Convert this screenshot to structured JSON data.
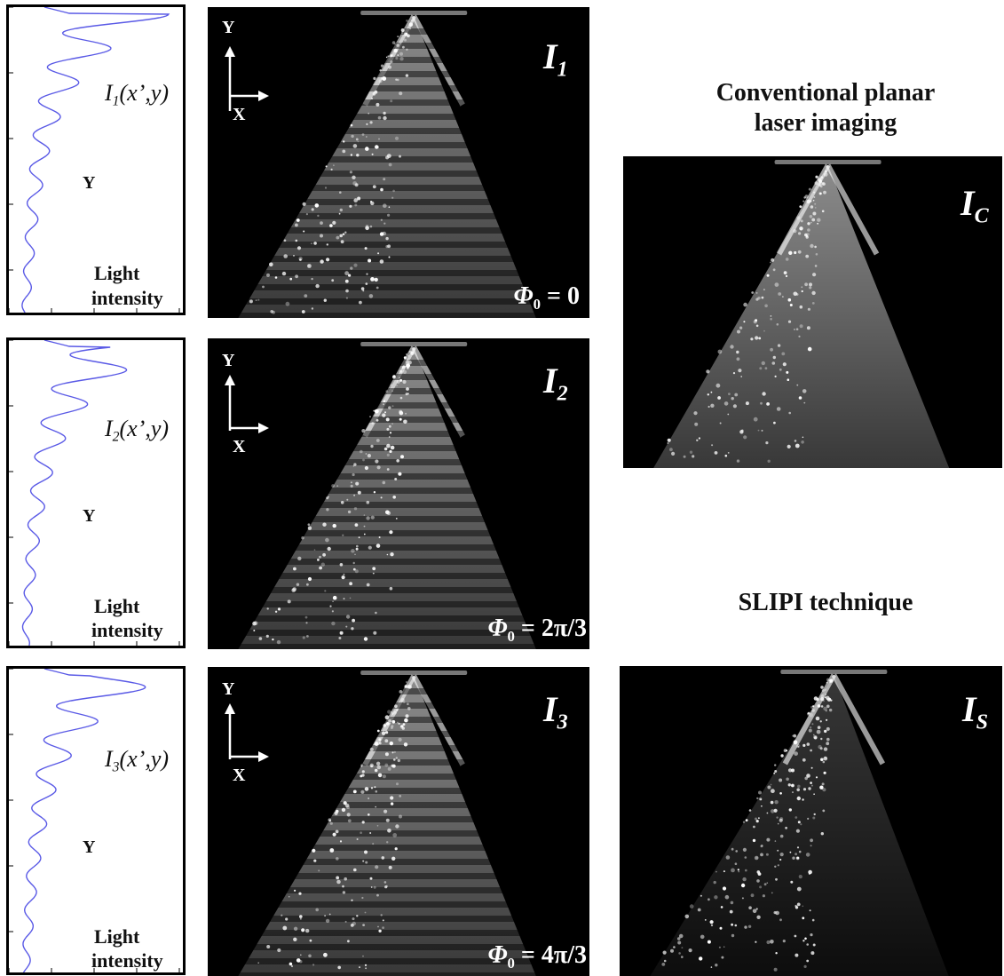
{
  "profiles": [
    {
      "main": "I",
      "sub": "1",
      "args": "(x’,y)",
      "y_label": "Y",
      "x_label_1": "Light",
      "x_label_2": "intensity"
    },
    {
      "main": "I",
      "sub": "2",
      "args": "(x’,y)",
      "y_label": "Y",
      "x_label_1": "Light",
      "x_label_2": "intensity"
    },
    {
      "main": "I",
      "sub": "3",
      "args": "(x’,y)",
      "y_label": "Y",
      "x_label_1": "Light",
      "x_label_2": "intensity"
    }
  ],
  "images": [
    {
      "main": "I",
      "sub": "1",
      "phase_sym": "Φ",
      "phase_sub": "0",
      "phase_val": " = 0",
      "axis_y": "Y",
      "axis_x": "X"
    },
    {
      "main": "I",
      "sub": "2",
      "phase_sym": "Φ",
      "phase_sub": "0",
      "phase_val": " = 2π/3",
      "axis_y": "Y",
      "axis_x": "X"
    },
    {
      "main": "I",
      "sub": "3",
      "phase_sym": "Φ",
      "phase_sub": "0",
      "phase_val": " = 4π/3",
      "axis_y": "Y",
      "axis_x": "X"
    }
  ],
  "conventional": {
    "title_1": "Conventional planar",
    "title_2": "laser imaging",
    "main": "I",
    "sub": "C"
  },
  "slipi": {
    "title": "SLIPI technique",
    "main": "I",
    "sub": "S"
  },
  "colors": {
    "profile_line": "#5a5ae6",
    "background": "#000000"
  }
}
